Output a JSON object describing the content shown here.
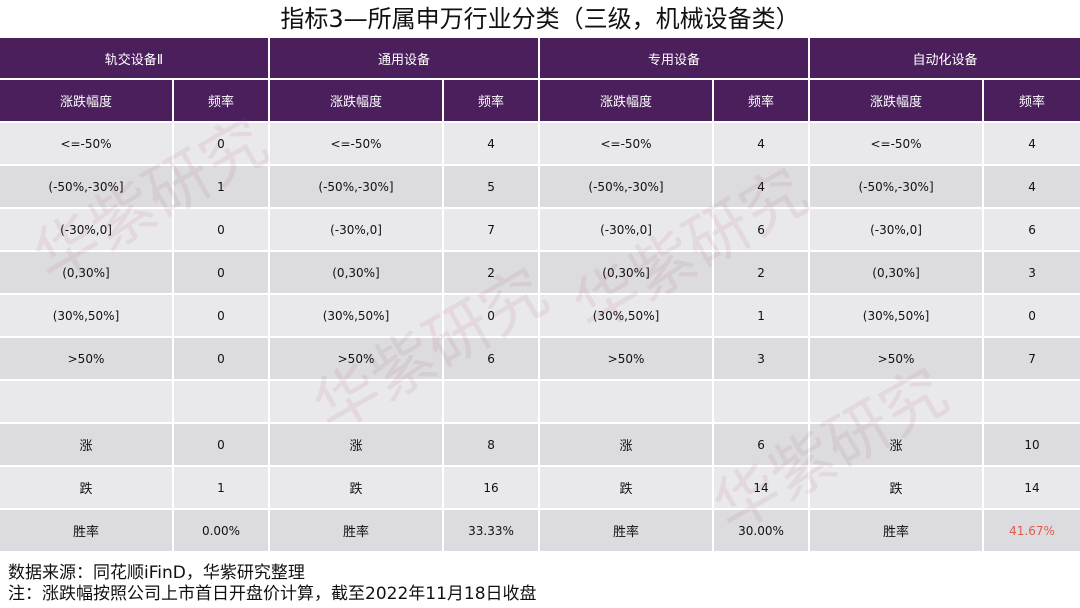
{
  "title": "指标3—所属申万行业分类（三级，机械设备类）",
  "groups": [
    {
      "name": "轨交设备Ⅱ",
      "range_label": "涨跌幅度",
      "freq_label": "频率"
    },
    {
      "name": "通用设备",
      "range_label": "涨跌幅度",
      "freq_label": "频率"
    },
    {
      "name": "专用设备",
      "range_label": "涨跌幅度",
      "freq_label": "频率"
    },
    {
      "name": "自动化设备",
      "range_label": "涨跌幅度",
      "freq_label": "频率"
    }
  ],
  "rows": [
    {
      "label": "<=-50%",
      "values": [
        "0",
        "4",
        "4",
        "4"
      ]
    },
    {
      "label": "(-50%,-30%]",
      "values": [
        "1",
        "5",
        "4",
        "4"
      ]
    },
    {
      "label": "(-30%,0]",
      "values": [
        "0",
        "7",
        "6",
        "6"
      ]
    },
    {
      "label": "(0,30%]",
      "values": [
        "0",
        "2",
        "2",
        "3"
      ]
    },
    {
      "label": "(30%,50%]",
      "values": [
        "0",
        "0",
        "1",
        "0"
      ]
    },
    {
      "label": ">50%",
      "values": [
        "0",
        "6",
        "3",
        "7"
      ]
    },
    {
      "label": "",
      "values": [
        "",
        "",
        "",
        ""
      ]
    },
    {
      "label": "涨",
      "values": [
        "0",
        "8",
        "6",
        "10"
      ]
    },
    {
      "label": "跌",
      "values": [
        "1",
        "16",
        "14",
        "14"
      ]
    },
    {
      "label": "胜率",
      "values": [
        "0.00%",
        "33.33%",
        "30.00%",
        "41.67%"
      ]
    }
  ],
  "highlight_color": "#e05b4a",
  "header_color": "#4a1f5c",
  "watermark_text": "华紫研究",
  "footer": {
    "source": "数据来源：同花顺iFinD，华紫研究整理",
    "note": "注：涨跌幅按照公司上市首日开盘价计算，截至2022年11月18日收盘"
  }
}
